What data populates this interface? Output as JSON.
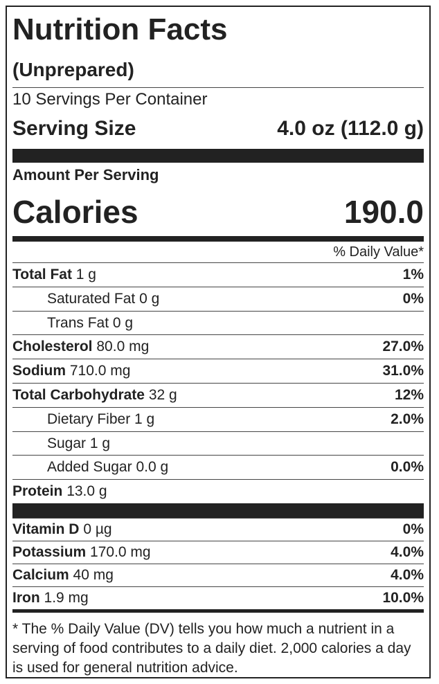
{
  "header": {
    "title": "Nutrition Facts",
    "subtitle": "(Unprepared)",
    "servings": "10 Servings Per Container",
    "serving_size_label": "Serving Size",
    "serving_size": "4.0 oz (112.0 g)",
    "amount_per_serving": "Amount Per Serving",
    "calories_label": "Calories",
    "calories": "190.0",
    "daily_value_header": "% Daily Value*"
  },
  "nutrients": [
    {
      "name": "Total Fat",
      "amount": "1 g",
      "dv": "1%",
      "indent": false
    },
    {
      "name": "Saturated Fat",
      "amount": "0 g",
      "dv": "0%",
      "indent": true
    },
    {
      "name": "Trans Fat",
      "amount": "0 g",
      "dv": null,
      "indent": true
    },
    {
      "name": "Cholesterol",
      "amount": "80.0 mg",
      "dv": "27.0%",
      "indent": false
    },
    {
      "name": "Sodium",
      "amount": "710.0 mg",
      "dv": "31.0%",
      "indent": false
    },
    {
      "name": "Total Carbohydrate",
      "amount": "32 g",
      "dv": "12%",
      "indent": false
    },
    {
      "name": "Dietary Fiber",
      "amount": "1 g",
      "dv": "2.0%",
      "indent": true
    },
    {
      "name": "Sugar",
      "amount": "1 g",
      "dv": null,
      "indent": true
    },
    {
      "name": "Added Sugar",
      "amount": "0.0 g",
      "dv": "0.0%",
      "indent": true
    },
    {
      "name": "Protein",
      "amount": "13.0 g",
      "dv": null,
      "indent": false
    }
  ],
  "vitamins": [
    {
      "name": "Vitamin D",
      "amount": "0 µg",
      "dv": "0%"
    },
    {
      "name": "Potassium",
      "amount": "170.0 mg",
      "dv": "4.0%"
    },
    {
      "name": "Calcium",
      "amount": "40 mg",
      "dv": "4.0%"
    },
    {
      "name": "Iron",
      "amount": "1.9 mg",
      "dv": "10.0%"
    }
  ],
  "footnote": "* The % Daily Value (DV) tells you how much a nutrient in a serving of food contributes to a daily diet. 2,000 calories a day is used for general nutrition advice."
}
